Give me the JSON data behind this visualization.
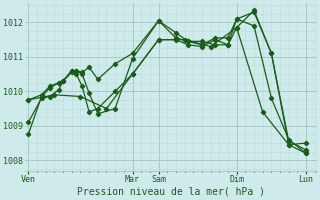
{
  "xlabel": "Pression niveau de la mer( hPa )",
  "background_color": "#ceeaea",
  "grid_color_major": "#a8c8c8",
  "grid_color_minor": "#bddada",
  "line_color": "#1a5c1a",
  "ylim": [
    1007.7,
    1012.55
  ],
  "ytick_values": [
    1008,
    1009,
    1010,
    1011,
    1012
  ],
  "day_positions": [
    0.0,
    3.0,
    3.75,
    6.0,
    8.0
  ],
  "day_labels": [
    "Ven",
    "Mar",
    "Sam",
    "Dim",
    "Lun"
  ],
  "xlim": [
    -0.1,
    8.3
  ],
  "series": [
    {
      "x": [
        0.0,
        0.38,
        0.62,
        0.88,
        1.0,
        1.25,
        1.38,
        1.55,
        1.75,
        2.0,
        2.5,
        3.0,
        3.75,
        4.25,
        4.6,
        5.0,
        5.38,
        5.75,
        6.0,
        6.5,
        7.0,
        7.5,
        8.0
      ],
      "y": [
        1009.1,
        1009.8,
        1009.85,
        1010.05,
        1010.3,
        1010.6,
        1010.6,
        1010.55,
        1010.7,
        1010.35,
        1010.8,
        1011.1,
        1012.05,
        1011.7,
        1011.45,
        1011.35,
        1011.55,
        1011.55,
        1012.1,
        1011.9,
        1009.8,
        1008.6,
        1008.2
      ]
    },
    {
      "x": [
        0.0,
        0.38,
        0.62,
        0.88,
        1.0,
        1.25,
        1.38,
        1.55,
        1.75,
        2.0,
        2.5,
        3.0,
        3.75,
        4.25,
        4.6,
        5.0,
        5.38,
        5.75,
        6.0,
        6.5,
        7.0,
        7.5,
        8.0
      ],
      "y": [
        1008.75,
        1009.85,
        1010.1,
        1010.25,
        1010.3,
        1010.55,
        1010.6,
        1010.5,
        1009.95,
        1009.35,
        1009.5,
        1010.95,
        1012.05,
        1011.55,
        1011.45,
        1011.45,
        1011.35,
        1011.35,
        1012.1,
        1012.3,
        1011.1,
        1008.55,
        1008.3
      ]
    },
    {
      "x": [
        0.0,
        0.38,
        0.62,
        0.88,
        1.0,
        1.25,
        1.38,
        1.55,
        1.75,
        2.0,
        2.5,
        3.0,
        3.75,
        4.25,
        4.6,
        5.0,
        5.38,
        5.75,
        6.0,
        6.5,
        7.0,
        7.5,
        8.0
      ],
      "y": [
        1009.75,
        1009.9,
        1010.15,
        1010.25,
        1010.3,
        1010.6,
        1010.5,
        1010.15,
        1009.4,
        1009.5,
        1010.0,
        1010.5,
        1011.5,
        1011.5,
        1011.35,
        1011.3,
        1011.5,
        1011.35,
        1011.85,
        1012.35,
        1011.1,
        1008.45,
        1008.5
      ]
    },
    {
      "x": [
        0.0,
        0.75,
        1.5,
        2.25,
        3.0,
        3.75,
        4.5,
        5.25,
        6.0,
        6.75,
        7.5,
        8.0
      ],
      "y": [
        1009.75,
        1009.9,
        1009.85,
        1009.5,
        1010.5,
        1011.5,
        1011.5,
        1011.3,
        1011.85,
        1009.4,
        1008.45,
        1008.2
      ]
    }
  ]
}
